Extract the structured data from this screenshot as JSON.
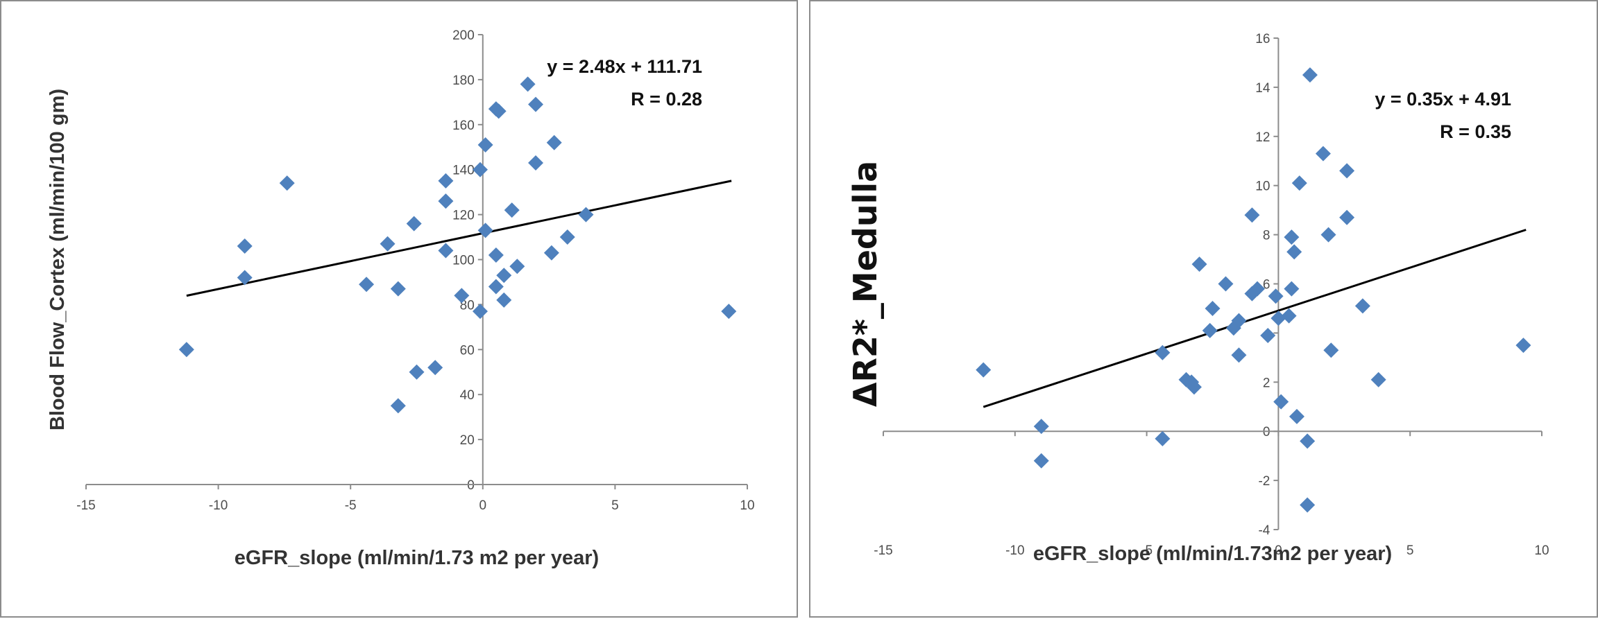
{
  "chart_data": [
    {
      "type": "scatter",
      "title": "",
      "xlabel": "eGFR_slope (ml/min/1.73 m2 per year)",
      "ylabel": "Blood Flow_Cortex (ml/min/100 gm)",
      "xlim": [
        -15,
        10
      ],
      "ylim": [
        0,
        200
      ],
      "xticks": [
        "-15",
        "-10",
        "-5",
        "0",
        "5",
        "10"
      ],
      "yticks": [
        "0",
        "20",
        "40",
        "60",
        "80",
        "100",
        "120",
        "140",
        "160",
        "180",
        "200"
      ],
      "grid": false,
      "marker_color": "#4f81bd",
      "trendline_color": "#000000",
      "trendline": {
        "slope": 2.48,
        "intercept": 111.71,
        "x_range": [
          -11.2,
          9.4
        ]
      },
      "annotations": [
        "y = 2.48x + 111.71",
        "R = 0.28"
      ],
      "points": [
        [
          -11.2,
          60
        ],
        [
          -9,
          106
        ],
        [
          -9,
          92
        ],
        [
          -7.4,
          134
        ],
        [
          -4.4,
          89
        ],
        [
          -3.6,
          107
        ],
        [
          -3.2,
          87
        ],
        [
          -3.2,
          35
        ],
        [
          -2.6,
          116
        ],
        [
          -2.5,
          50
        ],
        [
          -1.8,
          52
        ],
        [
          -1.4,
          135
        ],
        [
          -1.4,
          126
        ],
        [
          -1.4,
          104
        ],
        [
          -0.8,
          84
        ],
        [
          -0.1,
          140
        ],
        [
          -0.1,
          77
        ],
        [
          0.1,
          151
        ],
        [
          0.1,
          113
        ],
        [
          0.5,
          167
        ],
        [
          0.5,
          102
        ],
        [
          0.5,
          88
        ],
        [
          0.6,
          166
        ],
        [
          0.8,
          93
        ],
        [
          0.8,
          82
        ],
        [
          1.1,
          122
        ],
        [
          1.3,
          97
        ],
        [
          1.7,
          178
        ],
        [
          2,
          169
        ],
        [
          2,
          143
        ],
        [
          2.6,
          103
        ],
        [
          2.7,
          152
        ],
        [
          3.2,
          110
        ],
        [
          3.9,
          120
        ],
        [
          9.3,
          77
        ]
      ]
    },
    {
      "type": "scatter",
      "title": "",
      "xlabel": "eGFR_slope (ml/min/1.73m2 per year)",
      "ylabel": "ΔR2*_Medulla",
      "xlim": [
        -15,
        10
      ],
      "ylim": [
        -4,
        16
      ],
      "xticks": [
        "-15",
        "-10",
        "-5",
        "0",
        "5",
        "10"
      ],
      "yticks": [
        "-4",
        "-2",
        "0",
        "2",
        "4",
        "6",
        "8",
        "10",
        "12",
        "14",
        "16"
      ],
      "grid": false,
      "marker_color": "#4f81bd",
      "trendline_color": "#000000",
      "trendline": {
        "slope": 0.35,
        "intercept": 4.91,
        "x_range": [
          -11.2,
          9.4
        ]
      },
      "annotations": [
        "y = 0.35x + 4.91",
        "R = 0.35"
      ],
      "points": [
        [
          -11.2,
          2.5
        ],
        [
          -9,
          0.2
        ],
        [
          -9,
          -1.2
        ],
        [
          -4.4,
          3.2
        ],
        [
          -4.4,
          -0.3
        ],
        [
          -3.5,
          2.1
        ],
        [
          -3.3,
          2
        ],
        [
          -3.2,
          1.8
        ],
        [
          -3,
          6.8
        ],
        [
          -2.6,
          4.1
        ],
        [
          -2.5,
          5
        ],
        [
          -2,
          6
        ],
        [
          -1.7,
          4.2
        ],
        [
          -1.5,
          4.5
        ],
        [
          -1.5,
          3.1
        ],
        [
          -1,
          8.8
        ],
        [
          -1,
          5.6
        ],
        [
          -0.8,
          5.8
        ],
        [
          -0.4,
          3.9
        ],
        [
          -0.1,
          5.5
        ],
        [
          0,
          4.6
        ],
        [
          0.1,
          1.2
        ],
        [
          0.4,
          4.7
        ],
        [
          0.5,
          5.8
        ],
        [
          0.5,
          7.9
        ],
        [
          0.6,
          7.3
        ],
        [
          0.7,
          0.6
        ],
        [
          0.8,
          10.1
        ],
        [
          1.1,
          -0.4
        ],
        [
          1.1,
          -3
        ],
        [
          1.2,
          14.5
        ],
        [
          1.7,
          11.3
        ],
        [
          1.9,
          8
        ],
        [
          2,
          3.3
        ],
        [
          2.6,
          10.6
        ],
        [
          2.6,
          8.7
        ],
        [
          3.2,
          5.1
        ],
        [
          3.8,
          2.1
        ],
        [
          9.3,
          3.5
        ]
      ]
    }
  ]
}
